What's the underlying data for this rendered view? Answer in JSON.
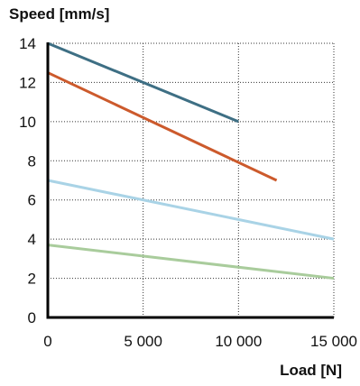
{
  "chart_data": {
    "type": "line",
    "xlabel": "Load [N]",
    "ylabel": "Speed [mm/s]",
    "xlim": [
      0,
      15000
    ],
    "ylim": [
      0,
      14
    ],
    "xticks": [
      0,
      5000,
      10000,
      15000
    ],
    "xtick_labels": [
      "0",
      "5 000",
      "10 000",
      "15 000"
    ],
    "yticks": [
      0,
      2,
      4,
      6,
      8,
      10,
      12,
      14
    ],
    "yticks_labels": [
      "0",
      "2",
      "4",
      "6",
      "8",
      "10",
      "12",
      "14"
    ],
    "grid": "dotted",
    "series": [
      {
        "color": "#3e6f84",
        "x": [
          0,
          10000
        ],
        "y": [
          14,
          10
        ]
      },
      {
        "color": "#cc5a2c",
        "x": [
          0,
          12000
        ],
        "y": [
          12.5,
          7
        ]
      },
      {
        "color": "#a9d3e6",
        "x": [
          0,
          15000
        ],
        "y": [
          7,
          4
        ]
      },
      {
        "color": "#a9cc9c",
        "x": [
          0,
          15000
        ],
        "y": [
          3.7,
          2
        ]
      }
    ]
  }
}
